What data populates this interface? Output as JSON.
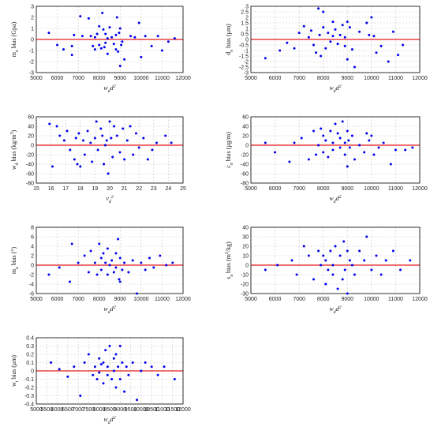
{
  "chart_data": [
    {
      "id": "p1",
      "type": "scatter",
      "xlabel_main": "w",
      "xlabel_sub": "d",
      "xlabel_tail": "d",
      "xlabel_sup": "2",
      "ylabel_main": "m",
      "ylabel_sub": "a",
      "ylabel_tail": " bias (Gpa)",
      "xlim": [
        5000,
        12000
      ],
      "ylim": [
        -3,
        3
      ],
      "xticks": [
        5000,
        6000,
        7000,
        8000,
        9000,
        10000,
        11000,
        12000
      ],
      "yticks": [
        -3,
        -2,
        -1,
        0,
        1,
        2,
        3
      ],
      "x": [
        5600,
        6000,
        6300,
        6700,
        6700,
        6800,
        7100,
        7200,
        7500,
        7600,
        7700,
        7800,
        7800,
        7900,
        8000,
        8000,
        8100,
        8150,
        8200,
        8250,
        8300,
        8300,
        8400,
        8400,
        8500,
        8600,
        8700,
        8800,
        8800,
        8850,
        8900,
        8950,
        9000,
        9000,
        9050,
        9100,
        9200,
        9500,
        9700,
        9900,
        10000,
        10200,
        10500,
        10800,
        11000,
        11300,
        11600
      ],
      "y": [
        0.6,
        -0.5,
        -0.9,
        -0.6,
        -1.4,
        0.4,
        2.1,
        0.3,
        1.9,
        0.3,
        -0.6,
        0.2,
        -0.9,
        0.5,
        1.2,
        -0.5,
        -0.8,
        2.4,
        0.9,
        -0.7,
        0.5,
        -0.3,
        0.1,
        -1.3,
        1.1,
        0.2,
        -0.4,
        0.4,
        -0.9,
        2.0,
        -1.1,
        0.6,
        1.0,
        -2.4,
        -0.5,
        -0.2,
        -1.8,
        0.3,
        0.2,
        1.5,
        -1.6,
        0.3,
        -0.6,
        0.3,
        -1.0,
        -0.2,
        0.1
      ]
    },
    {
      "id": "p2",
      "type": "scatter",
      "xlabel_main": "w",
      "xlabel_sub": "d",
      "xlabel_tail": "d",
      "xlabel_sup": "2",
      "ylabel_main": "d",
      "ylabel_sub": "o",
      "ylabel_tail": " bias (μm)",
      "xlim": [
        5000,
        12000
      ],
      "ylim": [
        -3,
        3
      ],
      "xticks": [
        5000,
        6000,
        7000,
        8000,
        9000,
        10000,
        11000,
        12000
      ],
      "yticks": [
        -3,
        -2.5,
        -2,
        -1.5,
        -1,
        -0.5,
        0,
        0.5,
        1,
        1.5,
        2,
        2.5,
        3
      ],
      "x": [
        5600,
        6200,
        6500,
        6800,
        7000,
        7200,
        7400,
        7500,
        7600,
        7700,
        7800,
        7850,
        7900,
        8000,
        8000,
        8100,
        8200,
        8300,
        8400,
        8400,
        8500,
        8600,
        8700,
        8800,
        8900,
        8900,
        9000,
        9000,
        9100,
        9200,
        9300,
        9500,
        9800,
        9900,
        10000,
        10100,
        10200,
        10400,
        10700,
        10900,
        11100,
        11300
      ],
      "y": [
        -1.7,
        -1.0,
        -0.3,
        -0.8,
        0.6,
        1.2,
        0.2,
        0.8,
        -0.5,
        -1.2,
        2.8,
        0.4,
        -1.5,
        2.5,
        1.1,
        -0.8,
        0.6,
        -0.2,
        1.6,
        0.3,
        0.9,
        -0.4,
        0.4,
        1.3,
        -0.6,
        0.2,
        1.6,
        -1.8,
        1.1,
        -0.9,
        -2.5,
        0.7,
        1.5,
        0.4,
        2.0,
        0.3,
        -1.2,
        -0.6,
        -2.0,
        0.7,
        -1.4,
        -0.5
      ]
    },
    {
      "id": "p3",
      "type": "scatter",
      "xlabel_main": "v",
      "xlabel_sub": "d",
      "xlabel_tail": "",
      "xlabel_sup": "2",
      "ylabel_main": "w",
      "ylabel_sub": "d",
      "ylabel_tail": " bias (kg/m",
      "ylabel_sup": "3",
      "ylabel_end": ")",
      "xlim": [
        15,
        25
      ],
      "ylim": [
        -80,
        60
      ],
      "xticks": [
        15,
        16,
        17,
        18,
        19,
        20,
        21,
        22,
        23,
        24,
        25
      ],
      "yticks": [
        -80,
        -60,
        -40,
        -20,
        0,
        20,
        40,
        60
      ],
      "x": [
        15.9,
        16.1,
        16.4,
        16.6,
        16.9,
        17.1,
        17.3,
        17.6,
        17.7,
        17.8,
        17.9,
        18.0,
        18.2,
        18.3,
        18.5,
        18.7,
        18.8,
        19.0,
        19.1,
        19.2,
        19.4,
        19.5,
        19.6,
        19.7,
        19.8,
        19.9,
        20.0,
        20.1,
        20.2,
        20.3,
        20.5,
        20.7,
        20.9,
        21.0,
        21.2,
        21.4,
        21.6,
        21.8,
        22.0,
        22.3,
        22.6,
        22.9,
        23.2,
        23.8,
        24.2
      ],
      "y": [
        45,
        -45,
        40,
        20,
        10,
        30,
        -10,
        -30,
        15,
        -40,
        25,
        -45,
        10,
        -20,
        30,
        5,
        -35,
        15,
        50,
        -10,
        35,
        20,
        -40,
        0,
        10,
        -60,
        50,
        15,
        -25,
        40,
        20,
        -15,
        35,
        -30,
        10,
        40,
        -20,
        25,
        -5,
        15,
        -30,
        -10,
        5,
        20,
        5
      ]
    },
    {
      "id": "p4",
      "type": "scatter",
      "xlabel_main": "w",
      "xlabel_sub": "d",
      "xlabel_tail": "d",
      "xlabel_sup": "2",
      "ylabel_main": "c",
      "ylabel_sub": "o",
      "ylabel_tail": " bias (μg/m)",
      "xlim": [
        5000,
        12000
      ],
      "ylim": [
        -80,
        60
      ],
      "xticks": [
        5000,
        6000,
        7000,
        8000,
        9000,
        10000,
        11000,
        12000
      ],
      "yticks": [
        -80,
        -60,
        -40,
        -20,
        0,
        20,
        40,
        60
      ],
      "x": [
        5600,
        6000,
        6600,
        6800,
        7100,
        7400,
        7600,
        7700,
        7800,
        7900,
        8000,
        8000,
        8100,
        8200,
        8300,
        8400,
        8400,
        8500,
        8600,
        8700,
        8700,
        8800,
        8900,
        8900,
        9000,
        9000,
        9050,
        9100,
        9200,
        9300,
        9500,
        9700,
        9800,
        9900,
        10000,
        10100,
        10300,
        10500,
        10800,
        11000,
        11400,
        11700
      ],
      "y": [
        5,
        -15,
        -35,
        5,
        15,
        -30,
        30,
        -20,
        0,
        35,
        -15,
        20,
        10,
        -25,
        30,
        5,
        -10,
        45,
        25,
        -5,
        15,
        50,
        -20,
        5,
        30,
        -45,
        10,
        -5,
        20,
        -30,
        0,
        -15,
        25,
        10,
        20,
        -20,
        -5,
        5,
        -40,
        -10,
        -10,
        -5
      ]
    },
    {
      "id": "p5",
      "type": "scatter",
      "xlabel_main": "w",
      "xlabel_sub": "d",
      "xlabel_tail": "d",
      "xlabel_sup": "2",
      "ylabel_main": "m",
      "ylabel_sub": "a",
      "ylabel_tail": " bias (°)",
      "xlim": [
        5000,
        12000
      ],
      "ylim": [
        -6,
        8
      ],
      "xticks": [
        5000,
        6000,
        7000,
        8000,
        9000,
        10000,
        11000,
        12000
      ],
      "yticks": [
        -6,
        -4,
        -2,
        0,
        2,
        4,
        6,
        8
      ],
      "x": [
        5600,
        6100,
        6600,
        6700,
        7000,
        7300,
        7500,
        7600,
        7800,
        7900,
        8000,
        8100,
        8100,
        8200,
        8300,
        8400,
        8400,
        8500,
        8600,
        8700,
        8800,
        8800,
        8900,
        8950,
        9000,
        9000,
        9100,
        9200,
        9400,
        9600,
        9800,
        10000,
        10200,
        10400,
        10600,
        10900,
        11200,
        11500
      ],
      "y": [
        -2,
        -0.5,
        -3.5,
        4.5,
        0.5,
        2,
        -1.5,
        3,
        0.5,
        -2,
        4.5,
        1.5,
        -1,
        2.5,
        0.5,
        -2,
        3.5,
        0,
        1,
        -1.5,
        2.5,
        -0.5,
        5.5,
        -3,
        1.5,
        -3.5,
        -1,
        0.5,
        -1.5,
        1,
        -6,
        0.5,
        -1,
        1.5,
        -0.5,
        2,
        0,
        0.5
      ]
    },
    {
      "id": "p6",
      "type": "scatter",
      "xlabel_main": "w",
      "xlabel_sub": "d",
      "xlabel_tail": "d",
      "xlabel_sup": "2",
      "ylabel_main": "s",
      "ylabel_sub": "a",
      "ylabel_tail": " bias (m",
      "ylabel_sup": "2",
      "ylabel_end": "/kg)",
      "xlim": [
        5000,
        12000
      ],
      "ylim": [
        -30,
        40
      ],
      "xticks": [
        5000,
        6000,
        7000,
        8000,
        9000,
        10000,
        11000,
        12000
      ],
      "yticks": [
        -30,
        -20,
        -10,
        0,
        10,
        20,
        30,
        40
      ],
      "x": [
        5600,
        6100,
        6700,
        6900,
        7200,
        7400,
        7600,
        7800,
        7900,
        8000,
        8100,
        8100,
        8200,
        8300,
        8400,
        8400,
        8500,
        8600,
        8700,
        8800,
        8850,
        8900,
        9000,
        9000,
        9100,
        9200,
        9300,
        9500,
        9700,
        9800,
        10000,
        10200,
        10400,
        10600,
        10900,
        11200,
        11600
      ],
      "y": [
        -5,
        0,
        5,
        -10,
        20,
        10,
        -15,
        15,
        0,
        10,
        -20,
        5,
        -5,
        15,
        -10,
        0,
        20,
        -25,
        10,
        -15,
        25,
        -5,
        15,
        -30,
        5,
        0,
        -10,
        15,
        5,
        30,
        -5,
        10,
        -10,
        5,
        15,
        -5,
        5
      ]
    },
    {
      "id": "p7",
      "type": "scatter",
      "xlabel_main": "w",
      "xlabel_sub": "d",
      "xlabel_tail": "d",
      "xlabel_sup": "2",
      "ylabel_main": "w",
      "ylabel_sub": "t",
      "ylabel_tail": " bias (μm)",
      "xlim": [
        5000,
        12000
      ],
      "ylim": [
        -0.4,
        0.4
      ],
      "xticks": [
        5000,
        5500,
        6000,
        6500,
        7000,
        7500,
        8000,
        8500,
        9000,
        9500,
        10000,
        10500,
        11000,
        11500,
        12000
      ],
      "yticks": [
        -0.4,
        -0.3,
        -0.2,
        -0.1,
        0,
        0.1,
        0.2,
        0.3,
        0.4
      ],
      "x": [
        5700,
        6100,
        6500,
        6800,
        7100,
        7300,
        7500,
        7700,
        7800,
        7900,
        8000,
        8000,
        8100,
        8200,
        8200,
        8300,
        8400,
        8400,
        8500,
        8600,
        8700,
        8700,
        8800,
        8800,
        8900,
        9000,
        9000,
        9100,
        9200,
        9300,
        9400,
        9600,
        9800,
        10000,
        10200,
        10500,
        10800,
        11100,
        11600
      ],
      "y": [
        0.1,
        0.02,
        -0.07,
        0.05,
        -0.3,
        0.1,
        0.2,
        -0.05,
        0.05,
        -0.1,
        0.15,
        -0.02,
        0.08,
        -0.15,
        0.1,
        0.25,
        -0.05,
        0.05,
        0.3,
        -0.1,
        0.15,
        0.0,
        -0.2,
        0.2,
        0.05,
        0.3,
        -0.1,
        0.1,
        -0.25,
        0.05,
        -0.05,
        0.1,
        -0.35,
        0.0,
        0.1,
        0.05,
        -0.05,
        0.05,
        -0.1
      ]
    }
  ]
}
